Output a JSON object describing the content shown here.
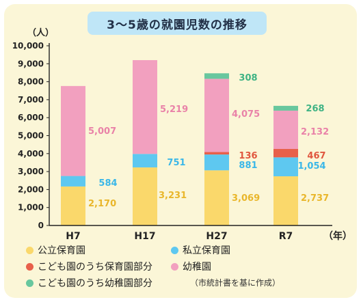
{
  "chart_data": {
    "type": "bar",
    "stacked": true,
    "title": "3〜5歳の就園児数の推移",
    "y_unit_label": "（人）",
    "x_unit_label": "（年）",
    "ylim": [
      0,
      10000
    ],
    "y_ticks": [
      "0",
      "1,000",
      "2,000",
      "3,000",
      "4,000",
      "5,000",
      "6,000",
      "7,000",
      "8,000",
      "9,000",
      "10,000"
    ],
    "categories": [
      "H7",
      "H17",
      "H27",
      "R7"
    ],
    "series": [
      {
        "name": "公立保育園",
        "color": "#fad86b",
        "label_color": "#e9b62a",
        "values": [
          2170,
          3231,
          3069,
          2737
        ],
        "labels": [
          "2,170",
          "3,231",
          "3,069",
          "2,737"
        ]
      },
      {
        "name": "私立保育園",
        "color": "#5ec8f0",
        "label_color": "#3ab7e8",
        "values": [
          584,
          751,
          881,
          1054
        ],
        "labels": [
          "584",
          "751",
          "881",
          "1,054"
        ]
      },
      {
        "name": "こども園のうち保育園部分",
        "color": "#e8604a",
        "label_color": "#e0563e",
        "values": [
          0,
          0,
          136,
          467
        ],
        "labels": [
          "",
          "",
          "136",
          "467"
        ]
      },
      {
        "name": "幼稚園",
        "color": "#f2a0bf",
        "label_color": "#e982a8",
        "values": [
          5007,
          5219,
          4075,
          2132
        ],
        "labels": [
          "5,007",
          "5,219",
          "4,075",
          "2,132"
        ]
      },
      {
        "name": "こども園のうち幼稚園部分",
        "color": "#68c79e",
        "label_color": "#3fb384",
        "values": [
          0,
          0,
          308,
          268
        ],
        "labels": [
          "",
          "",
          "308",
          "268"
        ]
      }
    ],
    "source_note": "（市統計書を基に作成）"
  }
}
